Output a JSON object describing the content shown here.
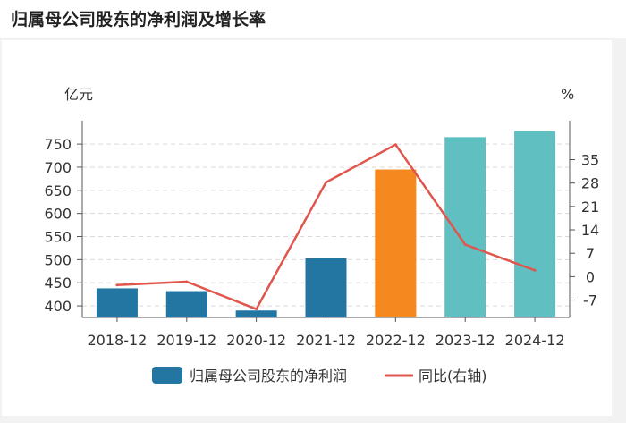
{
  "page": {
    "title": "归属母公司股东的净利润及增长率"
  },
  "colors": {
    "historical_bar": "#2276a1",
    "current_bar": "#f5881f",
    "forecast_bar": "#5fbfc1",
    "line": "#e0554c",
    "axis": "#555555",
    "grid": "#d9d9d9"
  },
  "chart_data": {
    "type": "bar",
    "categories": [
      "2018-12",
      "2019-12",
      "2020-12",
      "2021-12",
      "2022-12",
      "2023-12",
      "2024-12"
    ],
    "left_axis_unit": "亿元",
    "right_axis_unit": "%",
    "left_ticks": [
      400,
      450,
      500,
      550,
      600,
      650,
      700,
      750
    ],
    "right_ticks": [
      -7,
      0,
      7,
      14,
      21,
      28,
      35
    ],
    "ylim_left": [
      375,
      785
    ],
    "ylim_right": [
      -12.2,
      44.5
    ],
    "series": [
      {
        "name": "归属母公司股东的净利润",
        "axis": "left",
        "kind": "bar",
        "values": [
          438,
          432,
          390,
          503,
          695,
          765,
          778
        ],
        "bar_colors": [
          "#2276a1",
          "#2276a1",
          "#2276a1",
          "#2276a1",
          "#f5881f",
          "#5fbfc1",
          "#5fbfc1"
        ]
      },
      {
        "name": "同比(右轴)",
        "axis": "right",
        "kind": "line",
        "values": [
          -2.5,
          -1.5,
          -9.7,
          28.2,
          39.5,
          9.6,
          1.9
        ]
      }
    ],
    "grid": true,
    "legend_position": "bottom"
  }
}
